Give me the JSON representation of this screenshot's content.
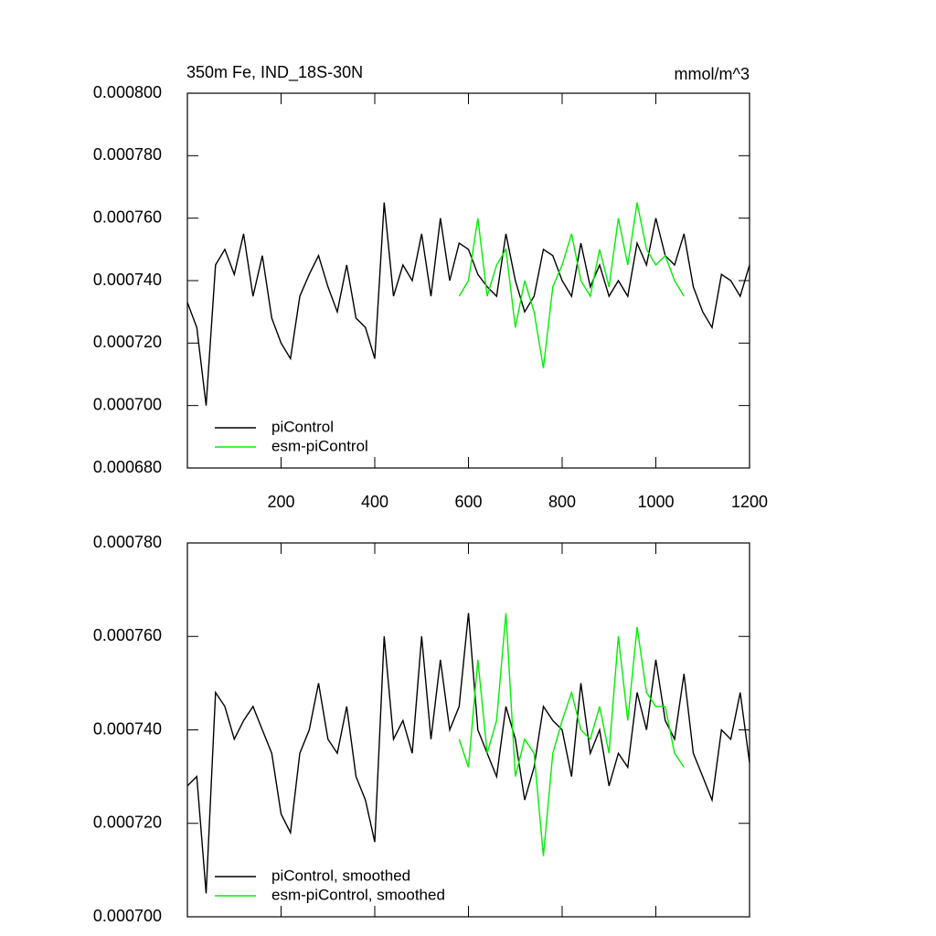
{
  "chart_data": [
    {
      "type": "line",
      "title": "350m Fe, IND_18S-30N",
      "units": "mmol/m^3",
      "xlim": [
        0,
        1200
      ],
      "xticks": [
        200,
        400,
        600,
        800,
        1000,
        1200
      ],
      "xtick_labels": true,
      "ylim": [
        0.00068,
        0.0008
      ],
      "yticks": [
        {
          "value": 0.00068,
          "label": "0.000680"
        },
        {
          "value": 0.0007,
          "label": "0.000700"
        },
        {
          "value": 0.00072,
          "label": "0.000720"
        },
        {
          "value": 0.00074,
          "label": "0.000740"
        },
        {
          "value": 0.00076,
          "label": "0.000760"
        },
        {
          "value": 0.00078,
          "label": "0.000780"
        },
        {
          "value": 0.0008,
          "label": "0.000800"
        }
      ],
      "legend": "lower left",
      "series": [
        {
          "name": "piControl",
          "color": "#000000",
          "x": [
            0,
            20,
            40,
            60,
            80,
            100,
            120,
            140,
            160,
            180,
            200,
            220,
            240,
            260,
            280,
            300,
            320,
            340,
            360,
            380,
            400,
            420,
            440,
            460,
            480,
            500,
            520,
            540,
            560,
            580,
            600,
            620,
            640,
            660,
            680,
            700,
            720,
            740,
            760,
            780,
            800,
            820,
            840,
            860,
            880,
            900,
            920,
            940,
            960,
            980,
            1000,
            1020,
            1040,
            1060,
            1080,
            1100,
            1120,
            1140,
            1160,
            1180,
            1200
          ],
          "values": [
            0.000733,
            0.000725,
            0.0007,
            0.000745,
            0.00075,
            0.000742,
            0.000755,
            0.000735,
            0.000748,
            0.000728,
            0.00072,
            0.000715,
            0.000735,
            0.000742,
            0.000748,
            0.000738,
            0.00073,
            0.000745,
            0.000728,
            0.000725,
            0.000715,
            0.000765,
            0.000735,
            0.000745,
            0.00074,
            0.000755,
            0.000735,
            0.00076,
            0.00074,
            0.000752,
            0.00075,
            0.000742,
            0.000738,
            0.000735,
            0.000755,
            0.00074,
            0.00073,
            0.000735,
            0.00075,
            0.000748,
            0.00074,
            0.000735,
            0.000752,
            0.000738,
            0.000745,
            0.000735,
            0.00074,
            0.000735,
            0.000752,
            0.000745,
            0.00076,
            0.000748,
            0.000745,
            0.000755,
            0.000738,
            0.00073,
            0.000725,
            0.000742,
            0.00074,
            0.000735,
            0.000745
          ]
        },
        {
          "name": "esm-piControl",
          "color": "#00ee00",
          "x": [
            580,
            600,
            620,
            640,
            660,
            680,
            700,
            720,
            740,
            760,
            780,
            800,
            820,
            840,
            860,
            880,
            900,
            920,
            940,
            960,
            980,
            1000,
            1020,
            1040,
            1060
          ],
          "values": [
            0.000735,
            0.00074,
            0.00076,
            0.000735,
            0.000745,
            0.00075,
            0.000725,
            0.00074,
            0.00073,
            0.000712,
            0.000738,
            0.000745,
            0.000755,
            0.00074,
            0.000735,
            0.00075,
            0.000738,
            0.00076,
            0.000745,
            0.000765,
            0.00075,
            0.000745,
            0.000748,
            0.00074,
            0.000735
          ]
        }
      ]
    },
    {
      "type": "line",
      "xlim": [
        0,
        1200
      ],
      "xticks": [
        200,
        400,
        600,
        800,
        1000,
        1200
      ],
      "xtick_labels": false,
      "ylim": [
        0.0007,
        0.00078
      ],
      "yticks": [
        {
          "value": 0.0007,
          "label": "0.000700"
        },
        {
          "value": 0.00072,
          "label": "0.000720"
        },
        {
          "value": 0.00074,
          "label": "0.000740"
        },
        {
          "value": 0.00076,
          "label": "0.000760"
        },
        {
          "value": 0.00078,
          "label": "0.000780"
        }
      ],
      "legend": "lower left",
      "series": [
        {
          "name": "piControl, smoothed",
          "color": "#000000",
          "x": [
            0,
            20,
            40,
            60,
            80,
            100,
            120,
            140,
            160,
            180,
            200,
            220,
            240,
            260,
            280,
            300,
            320,
            340,
            360,
            380,
            400,
            420,
            440,
            460,
            480,
            500,
            520,
            540,
            560,
            580,
            600,
            620,
            640,
            660,
            680,
            700,
            720,
            740,
            760,
            780,
            800,
            820,
            840,
            860,
            880,
            900,
            920,
            940,
            960,
            980,
            1000,
            1020,
            1040,
            1060,
            1080,
            1100,
            1120,
            1140,
            1160,
            1180,
            1200
          ],
          "values": [
            0.000728,
            0.00073,
            0.000705,
            0.000748,
            0.000745,
            0.000738,
            0.000742,
            0.000745,
            0.00074,
            0.000735,
            0.000722,
            0.000718,
            0.000735,
            0.00074,
            0.00075,
            0.000738,
            0.000735,
            0.000745,
            0.00073,
            0.000725,
            0.000716,
            0.00076,
            0.000738,
            0.000742,
            0.000735,
            0.00076,
            0.000738,
            0.000755,
            0.00074,
            0.000745,
            0.000765,
            0.00074,
            0.000735,
            0.00073,
            0.000745,
            0.000738,
            0.000725,
            0.000732,
            0.000745,
            0.000742,
            0.00074,
            0.00073,
            0.00075,
            0.000735,
            0.00074,
            0.000728,
            0.000735,
            0.000732,
            0.000748,
            0.00074,
            0.000755,
            0.000742,
            0.000738,
            0.000752,
            0.000735,
            0.00073,
            0.000725,
            0.00074,
            0.000738,
            0.000748,
            0.000733
          ]
        },
        {
          "name": "esm-piControl, smoothed",
          "color": "#00ee00",
          "x": [
            580,
            600,
            620,
            640,
            660,
            680,
            700,
            720,
            740,
            760,
            780,
            800,
            820,
            840,
            860,
            880,
            900,
            920,
            940,
            960,
            980,
            1000,
            1020,
            1040,
            1060
          ],
          "values": [
            0.000738,
            0.000732,
            0.000755,
            0.000735,
            0.000742,
            0.000765,
            0.00073,
            0.000738,
            0.000735,
            0.000713,
            0.000735,
            0.000742,
            0.000748,
            0.00074,
            0.000738,
            0.000745,
            0.000735,
            0.00076,
            0.000742,
            0.000762,
            0.000748,
            0.000745,
            0.000745,
            0.000735,
            0.000732
          ]
        }
      ]
    }
  ]
}
